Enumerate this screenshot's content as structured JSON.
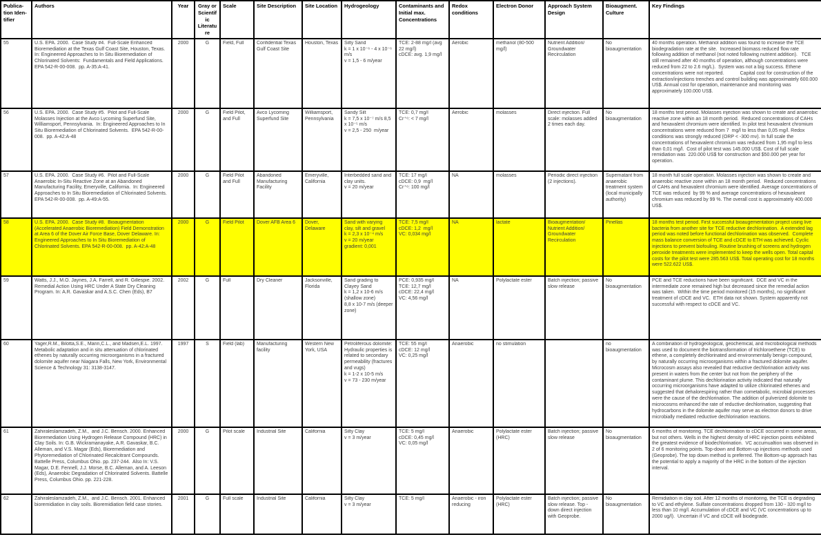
{
  "colors": {
    "highlight": "#ffff00",
    "border": "#000000",
    "header_text": "#000000",
    "body_text": "#3d3d3d"
  },
  "table": {
    "columns": [
      {
        "label": "Publica-\ntion Iden-\ntifier"
      },
      {
        "label": "Authors"
      },
      {
        "label": "Year"
      },
      {
        "label": "Gray or\nScientific\nLiterature"
      },
      {
        "label": "Scale"
      },
      {
        "label": "Site Description"
      },
      {
        "label": "Site Location"
      },
      {
        "label": "Hydrogeology"
      },
      {
        "label": "Contaminants and\nInitial max.\nConcentrations"
      },
      {
        "label": "Redox conditions"
      },
      {
        "label": "Electron Donor"
      },
      {
        "label": "Approach System Design"
      },
      {
        "label": "Bioaugment.\nCulture"
      },
      {
        "label": "Key Findings"
      }
    ],
    "rows": [
      {
        "highlight": false,
        "cells": [
          "55",
          "U.S. EPA. 2000.  Case Study #4.  Full-Scale Enhanced Bioremediation at the Texas Gulf Coast Site, Houston, Texas. In: Engineered Approaches to In Situ Bioremediation of Chlorinated Solvents:  Fundamentals and Field Applications. EPA 542-R-00-008.  pp. A-35:A-41.",
          "2000",
          "G",
          "Field, Full",
          "Confidential Texas Gulf Coast Site",
          "Houston, Texas",
          "Silty Sand\nk = 1 x 10⁻⁶ - 4 x 10⁻⁶ m/s\nv = 1,5 - 6 m/year",
          "TCE: 2-88 mg/l (avg 22 mg/l)\ncDCE: avg. 1,9 mg/l",
          "Aerobic",
          "methanol (80-500 mg/l)",
          "Nutrient Addition/ Groundwater Recirculation",
          "No bioaugmentation",
          "40 months operation. Methanol addition was found to increase the TCE biodegradation rate at the site.  Increased biomass reduced flow rate following addition of methanol (not noted following nutrient addition).   TCE still remained after 40 months of operation, although concentrations were reduced from 22 to 2.6 mg/L).  System was not a big success. Ethene concentrations were not reported.            Capital cost for construction of the extraction/injections trenches and control building was approximately 600.000 US$. Annual cost for operation, maintenance and monitoring was approximately 100.000 US$."
        ]
      },
      {
        "highlight": false,
        "cells": [
          "56",
          "U.S. EPA. 2000.  Case Study #5.  Pilot and Full-Scale Molasses Injection at the Avco Lycoming Superfund Site, Williamsport, Pennsylvania.  In: Engineered Approaches to In Situ Bioremediation of Chlorinated Solvents.  EPA 542-R-00-008.  pp. A-42:A-48",
          "2000",
          "G",
          "Field Pilot, and Full",
          "Avco Lycoming Superfund Site",
          "Williamsport, Pennsylvania",
          "Sandy Silt\nk = 7,5 x 10⁻⁷ m/s 8,5 x 10⁻⁵ m/s\nv = 2,5 - 250  m/year",
          "TCE: 0,7 mg/l\nCr⁺⁶: < 7 mg/l",
          "Aerobic",
          "molasses",
          "Direct injection. Full scale: molasses added 2 times each day.",
          "No bioaugmentation",
          "18 months test period. Molasses injection was shown to create and anaerobic reactive zone within an 18 month period.  Reduced concentrations of CAHs and hexavalent chromium were identified. In pilot test hexavalent chromium concentrations were reduced from 7  mg/l to less than 0,05 mg/l. Redox conditions was strongly reduced (ORP < -300 mv). In full scale the concentrations of hexavalent chromium was reduced from 1,95 mg/l to less than 0,01 mg/l.  Cost of pilot test was 145.000 US$. Cost of full scale remidiation was  220.000 US$ for construction and $50.000 per year for operation."
        ]
      },
      {
        "highlight": false,
        "cells": [
          "57",
          "U.S. EPA. 2000.  Case Study #6.  Pilot and Full-Scale Anaerobic In-Situ Reactive Zone at an Abandoned Manufacturing Facility, Emeryville, California.  In: Engineered Approaches to In Situ Bioremediation of Chlorinated Solvents.  EPA 542-R-00-008.  pp. A-49:A-55.",
          "2000",
          "G",
          "Field Pilot and Full",
          "Abandoned Manufacturing Facility",
          "Emeryville, California",
          "Interbedded sand and clay units.\nv = 20 m/year",
          "TCE: 17 mg/l\ncDCE: 0,9  mg/l\nCr⁺⁶: 100 mg/l",
          "NA",
          "molasses",
          "Periodic direct injection (2 injections).",
          "Supernatant from anaerobic treatment system (local municipally authority)",
          "18 month full scale operation. Molasses injection was shown to create and anaerobic reactive zone within an 18 month period.  Reduced concentrations of CAHs and hexavalent chromium were identified. Average concentrations of TCE was reduced  by 99 % and average concentrations of hexavalewnt chromium was reduced by 99 %. The overall cost is approximately 400.000 US$."
        ]
      },
      {
        "highlight": true,
        "cells": [
          "58",
          "U.S. EPA. 2000.  Case Study #8.  Bioaugmentation (Accelerated Anaerobic Bioremediation) Field Demonstration at Area 6 of the Dover Air Force Base, Dover Delaware. In: Engineered Approaches to In Situ Bioremediation of Chlorinated Solvents. EPA 542-R-00-008.  pp. A-42:A-48",
          "2000",
          "G",
          "Field Pilot",
          "Dover AFB Area 6",
          "Dover, Delaware",
          "Sand with varying clay, silt and gravel\nk = 2,3 x 10⁻⁴ m/s\nv = 20 m/year\ngradient: 0,001",
          "TCE: 7,5 mg/l\ncDCE: 1,2  mg/l\nVC: 0,034 mg/l",
          "NA",
          "lactate",
          "Bioaugmentation/ Nutrient Addition/ Groundwater Recirculation",
          "Pinellas",
          "18 months test period. First successful bioaugementation project using live bacteria from another site for TCE reductive dechlorination.  A extended lag period was noted before functional dechlorination was observed.  Complete mass balance conversion of TCE and cDCE to ETH was achieved. Cyclic injections to prevent biofouling. Routine brushing of screens and hydrogen peroxide treatments were implemented to keep the wells open. Total capital costs for the pilot test were 285.563 US$. Total operating cost for 18 months were 522.622 US$."
        ]
      },
      {
        "highlight": false,
        "cells": [
          "59",
          "Watts, J.J., M.O. Jaynes, J.A. Farrell, and R. Gillespie. 2002. Remedial Action Using HRC Under A State Dry Cleaning Program. In: A.R. Gavaskar and A.S.C. Chen (Eds), B7",
          "2002",
          "G",
          "Full",
          "Dry Cleaner",
          "Jacksonville, Florida",
          "Sand grading to Clayey Sand\nk = 1,2 x 10-6 m/s (shallow zone)\n8,8 x 10-7 m/s (deeper zone)",
          "PCE: 0,935 mg/l\nTCE: 12,7 mg/l\ncDCE: 22,4 mg/l\nVC: 4,56 mg/l",
          "NA",
          "Polylactate ester",
          "Batch injection; passive slow release",
          "No bioaugmentation",
          "PCE and TCE reductions have been significant.  DCE and VC in the intermediate zone remained high but decreased since the remedial action was taken.  Within the time period monitored (15 months), no significant treatment of cDCE and VC.  ETH data not shown. System apparently not successful with respect to cDCE and VC."
        ]
      },
      {
        "highlight": false,
        "cells": [
          "60",
          "Yager,R.M., Bilotta,S.E., Mann,C.L., and Madsen,E.L. 1997. Metabolic adaptation and in situ attenuation of chlorinated ethenes by naturally occurring microorganisms in a fractured dolomite aquifer near Niagara Falls, New York, Environmental Science & Technology 31: 3138-3147.",
          "1997",
          "S",
          "Field (lab)",
          "Manufacturing facility",
          "Western New York, USA",
          "Petroliferous dolomite: Hydraulic properties is related to secondary permeability (fractures and vugs)\nk = 1-2 x 10-5 m/s\nv = 73 - 230 m/year",
          "TCE: 55 mg/l      cDCE: 12 mg/l              VC: 0,25 mg/l",
          "Anaerobic",
          "no stimulation",
          "",
          "no bioaugmentation",
          "A combination of hydrogeological, geochemical, and microbiological methods was used to document the biotransformation of trichloroethene (TCE) to ethene, a completely dechlorinated and environmentally benign compound, by naturally occurring microorganisms within a fractured dolomite aquifer. Microcosm assays also revealed that reductive dechlorination activity was present in waters from the center but not from the periphery of the contaminant plume. This dechlorination activity indicated that naturally occurring microorganisms have adapted to utilize chlorinated ethenes and suggested that dehalorespiring rather than cometabolic, microbial processes were the cause of the dechlorination. The addition of pulverized dolomite to microcosms enhanced the rate of reductive dechlorination, suggesting that hydrocarbons in the dolomite aquifer may serve as electron donors to drive microbially mediated reductive dechlorination reactions."
        ]
      },
      {
        "highlight": false,
        "cells": [
          "61",
          "Zahiraleslamzadeh, Z.M.,  and J.C. Bensch. 2000. Enhanced Bioremediation Using Hydrogen Release Compound (HRC) in Clay Soils. In: G.B. Wickramanayake, A.R. Gavaskar, B.C. Alleman, and V.S. Magar (Eds), Bioremediation and Phytoremediation of Chlorinated Recalcitrant Compounds. Battelle Press, Columbus Ohio. pp. 237-244.  Also In: V.S. Magar, D.E. Fennell, J.J. Morse, B.C. Alleman, and A. Leeson (Eds), Anaerobic Degradation of Chlorinated Solvents. Battelle Press, Columbus Ohio. pp. 221-228.",
          "2000",
          "G",
          "Pilot scale",
          "Industrial Site",
          "California",
          "Silty Clay\nv = 3 m/year",
          "TCE: 5 mg/l\ncDCE: 0,45 mg/l\nVC: 0,05 mg/l",
          "Anaerobic",
          "Polylactate ester (HRC)",
          "Batch injection; passive slow release",
          "No bioaugmentation",
          "6 months of monitoring. TCE dechlorination to cDCE occurred in some areas, but not others. Wells in the highest density of HRC injection points exhibited the greatest evidence of biodechlorination.  VC accumualtion was observed in 2 of 6 monitoring points. Top-down and Bottom-up injections methods used (Geoprobe). The top down method is preferred. The Bottom-up approach has the potential to apply a majority of the HRC in the bottom of the injection interval."
        ]
      },
      {
        "highlight": false,
        "cells": [
          "62",
          "Zahiraleslamzadeh, Z.M.,  and J.C. Bensch. 2001. Enhanced bioremidiation in clay soils. Bioremidiation field case stories.",
          "2001",
          "G",
          "Full scale",
          "Industrial Site",
          "California",
          "Silty Clay\nv = 3 m/year",
          "TCE: 5 mg/l",
          "Anaerobic - iron reducing",
          "Polylactate ester (HRC)",
          "Batch injection; passive slow release. Top - down direct injection with Geoprobe.",
          "No bioaugmentation",
          "Remidiation in clay soil. After 12 months of monitoring, the TCE is degrading to VC and ethylene. Sulfate concentrations dropped from 130 - 320 mg/l to less than 10 mg/l. Accumulation of cDCE and VC (VC concentrations up to 2000 ug/l).  Uncertain if VC and cDCE will biodegrade."
        ]
      }
    ]
  }
}
